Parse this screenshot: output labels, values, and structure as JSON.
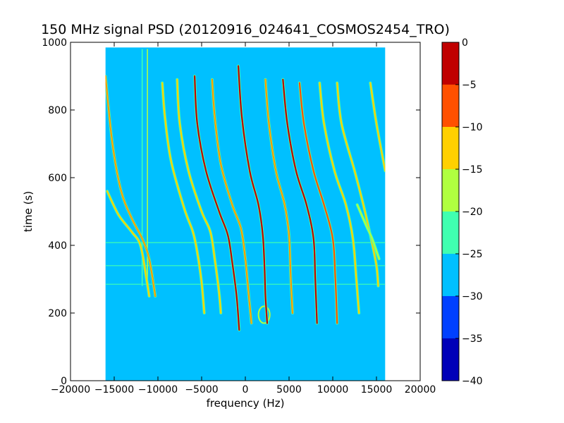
{
  "chart_data": {
    "type": "heatmap",
    "title": "150 MHz signal PSD (20120916_024641_COSMOS2454_TRO)",
    "xlabel": "frequency (Hz)",
    "ylabel": "time (s)",
    "xlim": [
      -20000,
      20000
    ],
    "ylim": [
      0,
      1000
    ],
    "xticks": [
      -20000,
      -15000,
      -10000,
      -5000,
      0,
      5000,
      10000,
      15000,
      20000
    ],
    "yticks": [
      0,
      200,
      400,
      600,
      800,
      1000
    ],
    "data_extent": {
      "x": [
        -16000,
        16000
      ],
      "y": [
        0,
        985
      ]
    },
    "background_level": -28,
    "colorbar": {
      "levels": [
        -40,
        -35,
        -30,
        -25,
        -20,
        -15,
        -10,
        -5,
        0
      ],
      "ticks": [
        "-40",
        "-35",
        "-30",
        "-25",
        "-20",
        "-15",
        "-10",
        "-5",
        "0"
      ],
      "colors": [
        "#0000b8",
        "#0040ff",
        "#00c0ff",
        "#40ffb0",
        "#b0ff40",
        "#ffd000",
        "#ff5000",
        "#c00000"
      ]
    },
    "traces": [
      {
        "peak": -12,
        "points": [
          [
            -16000,
            900
          ],
          [
            -15200,
            700
          ],
          [
            -14200,
            560
          ],
          [
            -13000,
            480
          ],
          [
            -11800,
            420
          ],
          [
            -11000,
            360
          ],
          [
            -10300,
            250
          ]
        ]
      },
      {
        "peak": -18,
        "points": [
          [
            -15800,
            560
          ],
          [
            -14500,
            490
          ],
          [
            -13000,
            440
          ],
          [
            -12000,
            400
          ],
          [
            -11300,
            300
          ],
          [
            -11000,
            250
          ]
        ]
      },
      {
        "peak": -18,
        "points": [
          [
            -9500,
            880
          ],
          [
            -9200,
            780
          ],
          [
            -8500,
            650
          ],
          [
            -7000,
            510
          ],
          [
            -6000,
            440
          ],
          [
            -5500,
            380
          ],
          [
            -5000,
            290
          ],
          [
            -4700,
            200
          ]
        ]
      },
      {
        "peak": -15,
        "points": [
          [
            -7800,
            890
          ],
          [
            -7500,
            760
          ],
          [
            -6500,
            620
          ],
          [
            -5000,
            500
          ],
          [
            -4000,
            440
          ],
          [
            -3500,
            360
          ],
          [
            -3000,
            260
          ],
          [
            -2800,
            200
          ]
        ]
      },
      {
        "peak": -5,
        "points": [
          [
            -5800,
            900
          ],
          [
            -5500,
            760
          ],
          [
            -4500,
            620
          ],
          [
            -3000,
            500
          ],
          [
            -2000,
            430
          ],
          [
            -1500,
            350
          ],
          [
            -1000,
            250
          ],
          [
            -700,
            150
          ]
        ]
      },
      {
        "peak": -12,
        "points": [
          [
            -3800,
            890
          ],
          [
            -3500,
            780
          ],
          [
            -2800,
            640
          ],
          [
            -1500,
            520
          ],
          [
            -500,
            450
          ],
          [
            0,
            360
          ],
          [
            400,
            250
          ],
          [
            700,
            170
          ]
        ]
      },
      {
        "peak": -2,
        "points": [
          [
            -800,
            930
          ],
          [
            -400,
            780
          ],
          [
            500,
            620
          ],
          [
            1500,
            520
          ],
          [
            2000,
            430
          ],
          [
            2200,
            330
          ],
          [
            2300,
            250
          ],
          [
            2500,
            170
          ]
        ]
      },
      {
        "peak": -12,
        "points": [
          [
            2300,
            890
          ],
          [
            2700,
            760
          ],
          [
            3500,
            620
          ],
          [
            4500,
            520
          ],
          [
            5000,
            430
          ],
          [
            5200,
            300
          ],
          [
            5400,
            200
          ]
        ]
      },
      {
        "peak": -3,
        "points": [
          [
            4300,
            890
          ],
          [
            4800,
            760
          ],
          [
            5800,
            620
          ],
          [
            7000,
            520
          ],
          [
            7800,
            420
          ],
          [
            8000,
            300
          ],
          [
            8200,
            170
          ]
        ]
      },
      {
        "peak": -10,
        "points": [
          [
            6200,
            880
          ],
          [
            6700,
            760
          ],
          [
            7800,
            620
          ],
          [
            9000,
            520
          ],
          [
            10000,
            420
          ],
          [
            10300,
            300
          ],
          [
            10500,
            170
          ]
        ]
      },
      {
        "peak": -18,
        "points": [
          [
            8500,
            880
          ],
          [
            9000,
            760
          ],
          [
            10200,
            620
          ],
          [
            11500,
            520
          ],
          [
            12300,
            420
          ],
          [
            12700,
            300
          ],
          [
            13000,
            200
          ]
        ]
      },
      {
        "peak": -18,
        "points": [
          [
            10500,
            880
          ],
          [
            11000,
            760
          ],
          [
            12500,
            620
          ],
          [
            13500,
            520
          ],
          [
            14300,
            430
          ],
          [
            15000,
            340
          ],
          [
            15200,
            280
          ]
        ]
      },
      {
        "peak": -18,
        "points": [
          [
            14300,
            880
          ],
          [
            15000,
            760
          ],
          [
            16000,
            620
          ]
        ]
      },
      {
        "peak": -22,
        "points": [
          [
            12800,
            520
          ],
          [
            13800,
            460
          ],
          [
            14500,
            420
          ],
          [
            15300,
            360
          ]
        ]
      }
    ],
    "verticals": [
      {
        "x": -11800,
        "y": [
          280,
          980
        ],
        "level": -22
      },
      {
        "x": -11200,
        "y": [
          280,
          980
        ],
        "level": -20
      }
    ],
    "hlines": [
      {
        "y": 408,
        "level": -24
      },
      {
        "y": 340,
        "level": -24
      },
      {
        "y": 285,
        "level": -24
      }
    ],
    "blobs": [
      {
        "x": [
          1500,
          2800
        ],
        "y": [
          170,
          220
        ],
        "level": -20
      }
    ]
  }
}
